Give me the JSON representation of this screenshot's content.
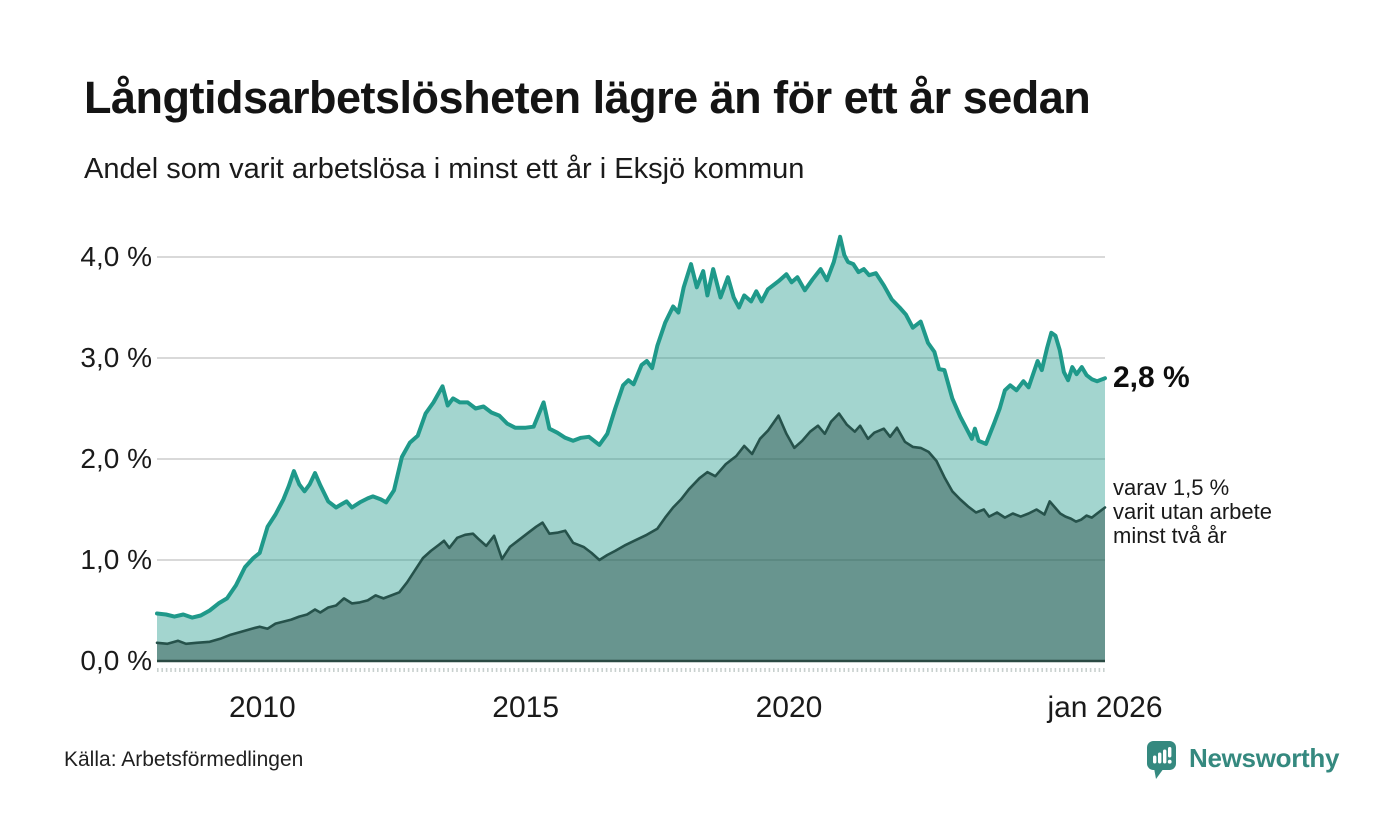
{
  "page": {
    "title": "Långtidsarbetslösheten lägre än för ett år sedan",
    "subtitle": "Andel som varit arbetslösa i minst ett år i Eksjö kommun",
    "source": "Källa: Arbetsförmedlingen",
    "brand": "Newsworthy",
    "brand_icon": "newsworthy-bar-chart-speech-bubble"
  },
  "chart_data": {
    "type": "area",
    "title": "Långtidsarbetslösheten lägre än för ett år sedan",
    "subtitle": "Andel som varit arbetslösa i minst ett år i Eksjö kommun",
    "xlabel": "",
    "ylabel": "",
    "x_domain": [
      2008,
      2026
    ],
    "ylim": [
      0,
      4.3
    ],
    "grid": true,
    "legend_position": "right-annotations",
    "x_ticks": [
      {
        "label": "2010",
        "value": 2010
      },
      {
        "label": "2015",
        "value": 2015
      },
      {
        "label": "2020",
        "value": 2020
      },
      {
        "label": "jan 2026",
        "value": 2026
      }
    ],
    "y_ticks": [
      {
        "label": "0,0 %",
        "value": 0
      },
      {
        "label": "1,0 %",
        "value": 1
      },
      {
        "label": "2,0 %",
        "value": 2
      },
      {
        "label": "3,0 %",
        "value": 3
      },
      {
        "label": "4,0 %",
        "value": 4
      }
    ],
    "annotations": {
      "primary": "2,8 %",
      "primary_value": 2.8,
      "note_lines": [
        "varav 1,5 %",
        "varit utan arbete",
        "minst två år"
      ],
      "note_value": 1.5
    },
    "colors": {
      "teal_line": "#1f998a",
      "teal_fill": "rgba(35,154,140,0.42)",
      "dark_line": "#26524b",
      "dark_fill": "rgba(23,62,54,0.42)",
      "grid": "#d9d9d9",
      "axis": "#2b4a43",
      "tick_dash": "#c9d1cf",
      "brand": "#35897f"
    },
    "series": [
      {
        "name": "Andel arbetslösa minst ett år",
        "end_value_pct": 2.8,
        "points": [
          [
            2008.0,
            0.47
          ],
          [
            2008.17,
            0.46
          ],
          [
            2008.33,
            0.44
          ],
          [
            2008.5,
            0.46
          ],
          [
            2008.67,
            0.43
          ],
          [
            2008.83,
            0.45
          ],
          [
            2009.0,
            0.5
          ],
          [
            2009.17,
            0.57
          ],
          [
            2009.33,
            0.62
          ],
          [
            2009.5,
            0.75
          ],
          [
            2009.67,
            0.93
          ],
          [
            2009.83,
            1.02
          ],
          [
            2009.95,
            1.07
          ],
          [
            2010.1,
            1.33
          ],
          [
            2010.25,
            1.45
          ],
          [
            2010.4,
            1.6
          ],
          [
            2010.5,
            1.73
          ],
          [
            2010.6,
            1.88
          ],
          [
            2010.7,
            1.75
          ],
          [
            2010.8,
            1.68
          ],
          [
            2010.9,
            1.75
          ],
          [
            2011.0,
            1.86
          ],
          [
            2011.1,
            1.74
          ],
          [
            2011.25,
            1.58
          ],
          [
            2011.4,
            1.52
          ],
          [
            2011.5,
            1.55
          ],
          [
            2011.6,
            1.58
          ],
          [
            2011.7,
            1.52
          ],
          [
            2011.85,
            1.57
          ],
          [
            2012.0,
            1.61
          ],
          [
            2012.1,
            1.63
          ],
          [
            2012.25,
            1.6
          ],
          [
            2012.35,
            1.57
          ],
          [
            2012.5,
            1.69
          ],
          [
            2012.65,
            2.02
          ],
          [
            2012.8,
            2.16
          ],
          [
            2012.95,
            2.23
          ],
          [
            2013.1,
            2.45
          ],
          [
            2013.25,
            2.56
          ],
          [
            2013.42,
            2.72
          ],
          [
            2013.52,
            2.53
          ],
          [
            2013.62,
            2.6
          ],
          [
            2013.75,
            2.56
          ],
          [
            2013.9,
            2.56
          ],
          [
            2014.05,
            2.5
          ],
          [
            2014.2,
            2.52
          ],
          [
            2014.35,
            2.46
          ],
          [
            2014.5,
            2.43
          ],
          [
            2014.65,
            2.35
          ],
          [
            2014.8,
            2.31
          ],
          [
            2015.0,
            2.31
          ],
          [
            2015.15,
            2.32
          ],
          [
            2015.34,
            2.56
          ],
          [
            2015.45,
            2.3
          ],
          [
            2015.6,
            2.26
          ],
          [
            2015.75,
            2.21
          ],
          [
            2015.9,
            2.18
          ],
          [
            2016.05,
            2.21
          ],
          [
            2016.2,
            2.22
          ],
          [
            2016.4,
            2.14
          ],
          [
            2016.55,
            2.25
          ],
          [
            2016.7,
            2.5
          ],
          [
            2016.85,
            2.73
          ],
          [
            2016.95,
            2.78
          ],
          [
            2017.05,
            2.74
          ],
          [
            2017.2,
            2.93
          ],
          [
            2017.3,
            2.97
          ],
          [
            2017.4,
            2.9
          ],
          [
            2017.5,
            3.12
          ],
          [
            2017.65,
            3.35
          ],
          [
            2017.8,
            3.51
          ],
          [
            2017.9,
            3.45
          ],
          [
            2018.0,
            3.7
          ],
          [
            2018.14,
            3.93
          ],
          [
            2018.25,
            3.7
          ],
          [
            2018.37,
            3.86
          ],
          [
            2018.45,
            3.62
          ],
          [
            2018.56,
            3.88
          ],
          [
            2018.7,
            3.6
          ],
          [
            2018.84,
            3.8
          ],
          [
            2018.95,
            3.6
          ],
          [
            2019.05,
            3.5
          ],
          [
            2019.15,
            3.62
          ],
          [
            2019.28,
            3.56
          ],
          [
            2019.38,
            3.66
          ],
          [
            2019.48,
            3.56
          ],
          [
            2019.6,
            3.68
          ],
          [
            2019.8,
            3.76
          ],
          [
            2019.95,
            3.83
          ],
          [
            2020.05,
            3.75
          ],
          [
            2020.16,
            3.8
          ],
          [
            2020.3,
            3.67
          ],
          [
            2020.45,
            3.78
          ],
          [
            2020.6,
            3.88
          ],
          [
            2020.72,
            3.77
          ],
          [
            2020.85,
            3.95
          ],
          [
            2020.97,
            4.2
          ],
          [
            2021.05,
            4.02
          ],
          [
            2021.12,
            3.95
          ],
          [
            2021.22,
            3.93
          ],
          [
            2021.32,
            3.85
          ],
          [
            2021.42,
            3.88
          ],
          [
            2021.52,
            3.82
          ],
          [
            2021.65,
            3.84
          ],
          [
            2021.8,
            3.72
          ],
          [
            2021.95,
            3.58
          ],
          [
            2022.1,
            3.5
          ],
          [
            2022.22,
            3.43
          ],
          [
            2022.35,
            3.3
          ],
          [
            2022.5,
            3.36
          ],
          [
            2022.64,
            3.15
          ],
          [
            2022.76,
            3.06
          ],
          [
            2022.85,
            2.89
          ],
          [
            2022.95,
            2.88
          ],
          [
            2023.1,
            2.6
          ],
          [
            2023.25,
            2.42
          ],
          [
            2023.4,
            2.27
          ],
          [
            2023.47,
            2.2
          ],
          [
            2023.53,
            2.3
          ],
          [
            2023.6,
            2.18
          ],
          [
            2023.74,
            2.15
          ],
          [
            2023.9,
            2.36
          ],
          [
            2024.0,
            2.5
          ],
          [
            2024.1,
            2.68
          ],
          [
            2024.2,
            2.73
          ],
          [
            2024.32,
            2.68
          ],
          [
            2024.45,
            2.77
          ],
          [
            2024.55,
            2.71
          ],
          [
            2024.72,
            2.97
          ],
          [
            2024.8,
            2.88
          ],
          [
            2024.9,
            3.1
          ],
          [
            2024.98,
            3.25
          ],
          [
            2025.06,
            3.22
          ],
          [
            2025.14,
            3.08
          ],
          [
            2025.22,
            2.86
          ],
          [
            2025.3,
            2.78
          ],
          [
            2025.38,
            2.91
          ],
          [
            2025.46,
            2.84
          ],
          [
            2025.56,
            2.91
          ],
          [
            2025.65,
            2.83
          ],
          [
            2025.75,
            2.79
          ],
          [
            2025.85,
            2.77
          ],
          [
            2026.0,
            2.8
          ]
        ]
      },
      {
        "name": "varav arbetslösa minst två år",
        "end_value_pct": 1.5,
        "points": [
          [
            2008.0,
            0.18
          ],
          [
            2008.2,
            0.17
          ],
          [
            2008.4,
            0.2
          ],
          [
            2008.55,
            0.17
          ],
          [
            2008.75,
            0.18
          ],
          [
            2009.0,
            0.19
          ],
          [
            2009.2,
            0.22
          ],
          [
            2009.4,
            0.26
          ],
          [
            2009.6,
            0.29
          ],
          [
            2009.8,
            0.32
          ],
          [
            2009.95,
            0.34
          ],
          [
            2010.1,
            0.32
          ],
          [
            2010.25,
            0.37
          ],
          [
            2010.4,
            0.39
          ],
          [
            2010.55,
            0.41
          ],
          [
            2010.7,
            0.44
          ],
          [
            2010.85,
            0.46
          ],
          [
            2011.0,
            0.51
          ],
          [
            2011.1,
            0.48
          ],
          [
            2011.25,
            0.53
          ],
          [
            2011.4,
            0.55
          ],
          [
            2011.55,
            0.62
          ],
          [
            2011.7,
            0.57
          ],
          [
            2011.85,
            0.58
          ],
          [
            2012.0,
            0.6
          ],
          [
            2012.15,
            0.65
          ],
          [
            2012.3,
            0.62
          ],
          [
            2012.45,
            0.65
          ],
          [
            2012.6,
            0.68
          ],
          [
            2012.75,
            0.78
          ],
          [
            2012.9,
            0.9
          ],
          [
            2013.05,
            1.02
          ],
          [
            2013.2,
            1.09
          ],
          [
            2013.35,
            1.15
          ],
          [
            2013.45,
            1.19
          ],
          [
            2013.55,
            1.12
          ],
          [
            2013.7,
            1.22
          ],
          [
            2013.85,
            1.25
          ],
          [
            2014.0,
            1.26
          ],
          [
            2014.1,
            1.21
          ],
          [
            2014.25,
            1.14
          ],
          [
            2014.4,
            1.24
          ],
          [
            2014.55,
            1.01
          ],
          [
            2014.7,
            1.13
          ],
          [
            2014.85,
            1.19
          ],
          [
            2015.05,
            1.27
          ],
          [
            2015.2,
            1.33
          ],
          [
            2015.32,
            1.37
          ],
          [
            2015.45,
            1.26
          ],
          [
            2015.6,
            1.27
          ],
          [
            2015.75,
            1.29
          ],
          [
            2015.9,
            1.17
          ],
          [
            2016.1,
            1.13
          ],
          [
            2016.25,
            1.07
          ],
          [
            2016.4,
            1.0
          ],
          [
            2016.55,
            1.05
          ],
          [
            2016.7,
            1.09
          ],
          [
            2016.9,
            1.15
          ],
          [
            2017.1,
            1.2
          ],
          [
            2017.3,
            1.25
          ],
          [
            2017.5,
            1.31
          ],
          [
            2017.65,
            1.42
          ],
          [
            2017.8,
            1.52
          ],
          [
            2017.95,
            1.6
          ],
          [
            2018.1,
            1.7
          ],
          [
            2018.3,
            1.81
          ],
          [
            2018.45,
            1.87
          ],
          [
            2018.6,
            1.83
          ],
          [
            2018.8,
            1.95
          ],
          [
            2019.0,
            2.03
          ],
          [
            2019.15,
            2.13
          ],
          [
            2019.3,
            2.05
          ],
          [
            2019.45,
            2.2
          ],
          [
            2019.6,
            2.28
          ],
          [
            2019.8,
            2.43
          ],
          [
            2019.95,
            2.25
          ],
          [
            2020.1,
            2.11
          ],
          [
            2020.25,
            2.18
          ],
          [
            2020.4,
            2.27
          ],
          [
            2020.55,
            2.33
          ],
          [
            2020.68,
            2.25
          ],
          [
            2020.8,
            2.37
          ],
          [
            2020.95,
            2.45
          ],
          [
            2021.1,
            2.34
          ],
          [
            2021.25,
            2.27
          ],
          [
            2021.35,
            2.33
          ],
          [
            2021.5,
            2.2
          ],
          [
            2021.62,
            2.26
          ],
          [
            2021.8,
            2.3
          ],
          [
            2021.92,
            2.22
          ],
          [
            2022.05,
            2.31
          ],
          [
            2022.2,
            2.17
          ],
          [
            2022.35,
            2.12
          ],
          [
            2022.5,
            2.11
          ],
          [
            2022.65,
            2.07
          ],
          [
            2022.8,
            1.98
          ],
          [
            2022.95,
            1.82
          ],
          [
            2023.1,
            1.68
          ],
          [
            2023.25,
            1.6
          ],
          [
            2023.4,
            1.53
          ],
          [
            2023.55,
            1.47
          ],
          [
            2023.7,
            1.5
          ],
          [
            2023.8,
            1.43
          ],
          [
            2023.95,
            1.47
          ],
          [
            2024.1,
            1.42
          ],
          [
            2024.25,
            1.46
          ],
          [
            2024.4,
            1.43
          ],
          [
            2024.55,
            1.46
          ],
          [
            2024.7,
            1.5
          ],
          [
            2024.85,
            1.45
          ],
          [
            2024.95,
            1.58
          ],
          [
            2025.05,
            1.52
          ],
          [
            2025.15,
            1.46
          ],
          [
            2025.25,
            1.43
          ],
          [
            2025.35,
            1.41
          ],
          [
            2025.45,
            1.38
          ],
          [
            2025.55,
            1.4
          ],
          [
            2025.65,
            1.44
          ],
          [
            2025.75,
            1.42
          ],
          [
            2025.85,
            1.46
          ],
          [
            2026.0,
            1.52
          ]
        ]
      }
    ]
  }
}
